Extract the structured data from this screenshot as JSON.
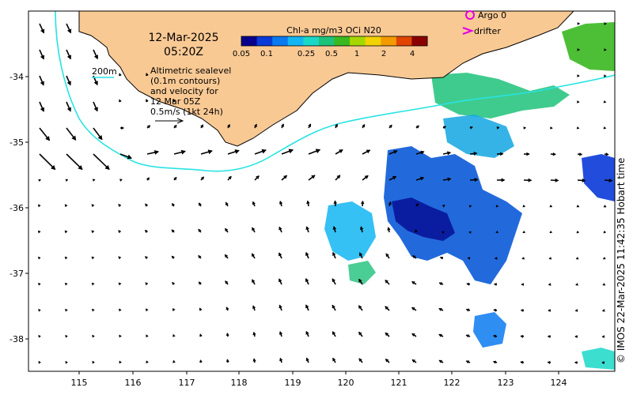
{
  "header": {
    "date": "12-Mar-2025",
    "time": "05:20Z"
  },
  "colorbar": {
    "title": "Chl-a mg/m3 OCi N20",
    "ticks": [
      "0.05",
      "0.1",
      "0.25",
      "0.5",
      "1",
      "2",
      "4"
    ],
    "colors": [
      "#08008a",
      "#0a3ad8",
      "#0a7af0",
      "#12b6f2",
      "#1ad8c8",
      "#1ec27a",
      "#3ab820",
      "#a6d800",
      "#f2d200",
      "#f29a00",
      "#e04400",
      "#8a0000"
    ]
  },
  "legend": {
    "argo_label": "Argo 0",
    "drifter_label": "drifter",
    "argo_color": "#e600e6",
    "drifter_color": "#e600e6"
  },
  "contour_legend": {
    "label": "200m",
    "color": "#27e3e3"
  },
  "annotation": {
    "lines": [
      "Altimetric sealevel",
      "(0.1m contours)",
      "and velocity for",
      "12 Mar 05Z",
      "0.5m/s (1kt 24h)"
    ]
  },
  "axes": {
    "x_ticks": [
      "115",
      "116",
      "117",
      "118",
      "119",
      "120",
      "121",
      "122",
      "123",
      "124"
    ],
    "y_ticks": [
      "-34",
      "-35",
      "-36",
      "-37",
      "-38"
    ]
  },
  "credit": "© IMOS 22-Mar-2025 11:42:35 Hobart time",
  "colors": {
    "land": "#f9c994",
    "coast": "#000000",
    "isobath": "#27e3e3",
    "arrow": "#000000"
  }
}
